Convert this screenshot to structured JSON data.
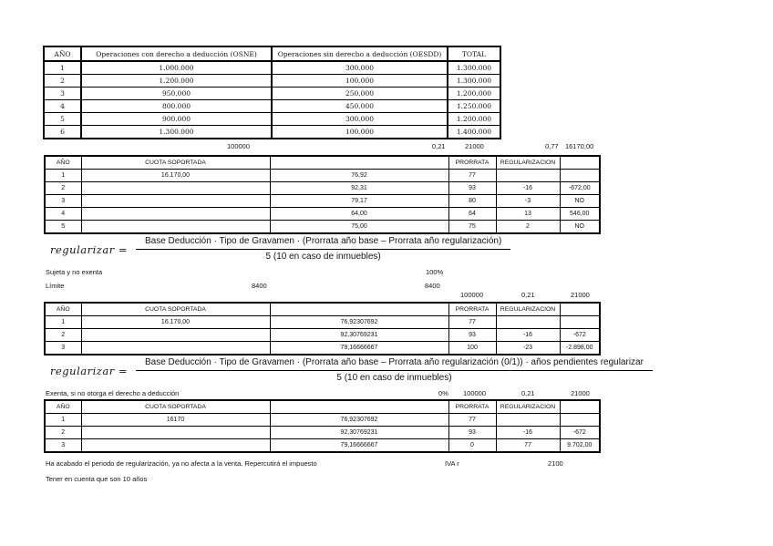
{
  "table1": {
    "headers": [
      "AÑO",
      "Operaciones con derecho a deducción (OSNE)",
      "Operaciones sin derecho a deducción (OESDD)",
      "TOTAL"
    ],
    "rows": [
      [
        "1",
        "1.000.000",
        "300.000",
        "1.300.000"
      ],
      [
        "2",
        "1.200.000",
        "100.000",
        "1.300.000"
      ],
      [
        "3",
        "950.000",
        "250.000",
        "1.200.000"
      ],
      [
        "4",
        "800.000",
        "450.000",
        "1.250.000"
      ],
      [
        "5",
        "900.000",
        "300.000",
        "1.200.000"
      ],
      [
        "6",
        "1.300.000",
        "100.000",
        "1.400.000"
      ]
    ]
  },
  "strip1": {
    "base": "100000",
    "tipo": "0,21",
    "cuota": "21000",
    "prorrata": "0,77",
    "deducible": "16170,00"
  },
  "table2": {
    "headers": [
      "AÑO",
      "CUOTA SOPORTADA",
      "",
      "PRORRATA",
      "REGULARIZACION",
      ""
    ],
    "rows": [
      [
        "1",
        "16.170,00",
        "76,92",
        "77",
        "",
        ""
      ],
      [
        "2",
        "",
        "92,31",
        "93",
        "-16",
        "-672,00"
      ],
      [
        "3",
        "",
        "79,17",
        "80",
        "-3",
        "NO"
      ],
      [
        "4",
        "",
        "64,00",
        "64",
        "13",
        "546,00"
      ],
      [
        "5",
        "",
        "75,00",
        "75",
        "2",
        "NO"
      ]
    ]
  },
  "formula1": {
    "lhs": "regularizar =",
    "numerator": "Base Deducción · Tipo de Gravamen · (Prorrata año base – Prorrata año regularización)",
    "denominator": "5 (10 en caso de inmuebles)"
  },
  "notes1": {
    "sujeta_label": "Sujeta y no exenta",
    "sujeta_value": "100%",
    "limite_label": "Límite",
    "limite_value_1": "8400",
    "limite_value_2": "8400"
  },
  "strip2": {
    "base": "100000",
    "tipo": "0,21",
    "cuota": "21000"
  },
  "table3": {
    "headers": [
      "AÑO",
      "CUOTA SOPORTADA",
      "",
      "PRORRATA",
      "REGULARIZACION",
      ""
    ],
    "rows": [
      [
        "1",
        "16.170,00",
        "76,92307692",
        "77",
        "",
        ""
      ],
      [
        "2",
        "",
        "92,30769231",
        "93",
        "-16",
        "-672"
      ],
      [
        "3",
        "",
        "79,16666667",
        "100",
        "-23",
        "-2.898,00"
      ]
    ]
  },
  "formula2": {
    "lhs": "regularizar =",
    "numerator": "Base Deducción · Tipo de Gravamen · (Prorrata año base – Prorrata año regularización (0/1)) · años pendientes regularizar",
    "denominator": "5 (10 en caso de inmuebles)"
  },
  "notes2": {
    "exenta_label": "Exenta, si no otorga el derecho a deducción",
    "pct": "0%",
    "base": "100000",
    "tipo": "0,21",
    "cuota": "21000"
  },
  "table4": {
    "headers": [
      "AÑO",
      "CUOTA SOPORTADA",
      "",
      "PRORRATA",
      "REGULARIZACION",
      ""
    ],
    "rows": [
      [
        "1",
        "16170",
        "76,92307692",
        "77",
        "",
        ""
      ],
      [
        "2",
        "",
        "92,30769231",
        "93",
        "-16",
        "-672"
      ],
      [
        "3",
        "",
        "79,16666667",
        "0",
        "77",
        "9.702,00"
      ]
    ]
  },
  "footer": {
    "line1": "Ha acabado el periodo de regularización, ya no afecta a la venta. Repercutirá el impuesto",
    "iva_label": "IVA r",
    "iva_value": "2100",
    "line2": "Tener en cuenta que son 10 años"
  }
}
